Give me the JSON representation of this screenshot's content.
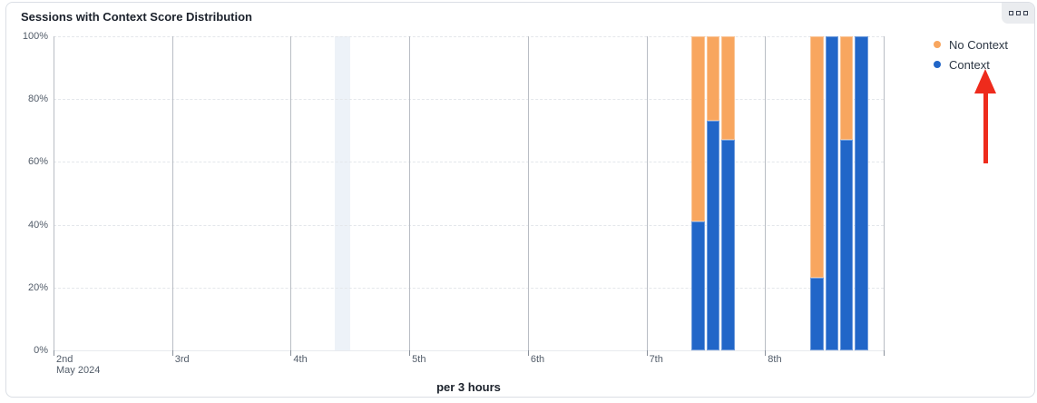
{
  "card": {
    "title": "Sessions with Context Score Distribution",
    "menu_icon": "three-squares-icon"
  },
  "legend": {
    "position": "top-right",
    "items": [
      {
        "label": "No Context",
        "color": "#F8A65F"
      },
      {
        "label": "Context",
        "color": "#2166C8"
      }
    ]
  },
  "annotation": {
    "type": "red-arrow-up",
    "target": "Context legend item",
    "color": "#EE2B1C"
  },
  "chart_data": {
    "type": "bar",
    "stacked": true,
    "unit": "percent",
    "title": "Sessions with Context Score Distribution",
    "xlabel": "per 3 hours",
    "ylabel": "",
    "ylim": [
      0,
      100
    ],
    "y_ticks": [
      "100%",
      "80%",
      "60%",
      "40%",
      "20%",
      "0%"
    ],
    "grid": {
      "horizontal": "dashed",
      "vertical": "solid-per-day"
    },
    "x_axis": {
      "tick_labels": [
        "2nd",
        "3rd",
        "4th",
        "5th",
        "6th",
        "7th",
        "8th"
      ],
      "sub_label": "May 2024",
      "slots_per_day": 8
    },
    "series": [
      {
        "name": "No Context",
        "color": "#F8A65F"
      },
      {
        "name": "Context",
        "color": "#2166C8"
      }
    ],
    "bars": [
      {
        "label": "May 7 09:00",
        "day_offset": 5,
        "slot": 3,
        "context": 41,
        "no_context": 59
      },
      {
        "label": "May 7 12:00",
        "day_offset": 5,
        "slot": 4,
        "context": 73,
        "no_context": 27
      },
      {
        "label": "May 7 15:00",
        "day_offset": 5,
        "slot": 5,
        "context": 67,
        "no_context": 33
      },
      {
        "label": "May 8 09:00",
        "day_offset": 6,
        "slot": 3,
        "context": 23,
        "no_context": 77
      },
      {
        "label": "May 8 12:00",
        "day_offset": 6,
        "slot": 4,
        "context": 100,
        "no_context": 0
      },
      {
        "label": "May 8 15:00",
        "day_offset": 6,
        "slot": 5,
        "context": 67,
        "no_context": 33
      },
      {
        "label": "May 8 18:00",
        "day_offset": 6,
        "slot": 6,
        "context": 100,
        "no_context": 0
      }
    ],
    "highlight_band": {
      "label": "May 4 09:00",
      "day_offset": 2,
      "slot": 3,
      "color": "#EDF2F8"
    },
    "legend_position": "top-right"
  }
}
